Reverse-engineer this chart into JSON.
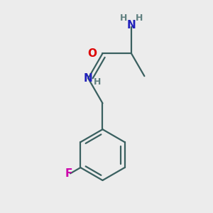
{
  "bg_color": "#ececec",
  "bond_color": "#3a6060",
  "N_color": "#2020bb",
  "O_color": "#dd0000",
  "F_color": "#cc00aa",
  "H_color": "#608080",
  "line_width": 1.6,
  "font_size_atom": 11,
  "font_size_H": 9,
  "figsize": [
    3.0,
    3.0
  ],
  "dpi": 100,
  "xlim": [
    -0.15,
    1.05
  ],
  "ylim": [
    -1.05,
    0.55
  ]
}
